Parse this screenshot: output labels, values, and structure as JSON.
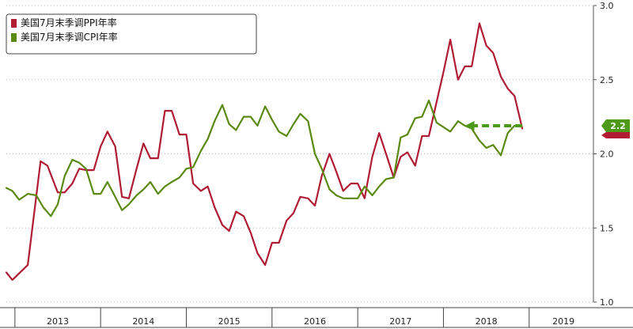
{
  "chart_data": {
    "type": "line",
    "title": "",
    "xlabel": "",
    "ylabel": "",
    "ylim": [
      1.0,
      3.0
    ],
    "yticks": [
      "1.0",
      "1.5",
      "2.0",
      "2.5",
      "3.0"
    ],
    "xrange": [
      2012.9,
      2019.75
    ],
    "years": [
      "2013",
      "2014",
      "2015",
      "2016",
      "2017",
      "2018",
      "2019"
    ],
    "grid": "horizontal-dotted",
    "legend_position": "top-left",
    "series": [
      {
        "name": "美国7月末季调PPI年率",
        "color": "#b01c34",
        "points": [
          [
            2012.9,
            1.2
          ],
          [
            2012.97,
            1.15
          ],
          [
            2013.15,
            1.25
          ],
          [
            2013.3,
            1.95
          ],
          [
            2013.38,
            1.92
          ],
          [
            2013.5,
            1.74
          ],
          [
            2013.58,
            1.74
          ],
          [
            2013.67,
            1.8
          ],
          [
            2013.75,
            1.9
          ],
          [
            2013.83,
            1.89
          ],
          [
            2013.92,
            1.89
          ],
          [
            2014.0,
            2.05
          ],
          [
            2014.08,
            2.15
          ],
          [
            2014.17,
            2.05
          ],
          [
            2014.25,
            1.71
          ],
          [
            2014.33,
            1.7
          ],
          [
            2014.42,
            1.9
          ],
          [
            2014.5,
            2.07
          ],
          [
            2014.58,
            1.97
          ],
          [
            2014.67,
            1.97
          ],
          [
            2014.75,
            2.29
          ],
          [
            2014.83,
            2.29
          ],
          [
            2014.92,
            2.13
          ],
          [
            2015.0,
            2.13
          ],
          [
            2015.08,
            1.8
          ],
          [
            2015.17,
            1.75
          ],
          [
            2015.25,
            1.78
          ],
          [
            2015.33,
            1.64
          ],
          [
            2015.42,
            1.52
          ],
          [
            2015.5,
            1.48
          ],
          [
            2015.58,
            1.61
          ],
          [
            2015.67,
            1.58
          ],
          [
            2015.75,
            1.47
          ],
          [
            2015.83,
            1.33
          ],
          [
            2015.92,
            1.25
          ],
          [
            2016.0,
            1.4
          ],
          [
            2016.08,
            1.4
          ],
          [
            2016.17,
            1.55
          ],
          [
            2016.25,
            1.6
          ],
          [
            2016.33,
            1.71
          ],
          [
            2016.42,
            1.7
          ],
          [
            2016.5,
            1.65
          ],
          [
            2016.58,
            1.85
          ],
          [
            2016.67,
            2.0
          ],
          [
            2016.75,
            1.88
          ],
          [
            2016.83,
            1.75
          ],
          [
            2016.92,
            1.8
          ],
          [
            2017.0,
            1.8
          ],
          [
            2017.08,
            1.7
          ],
          [
            2017.17,
            1.98
          ],
          [
            2017.25,
            2.14
          ],
          [
            2017.33,
            2.0
          ],
          [
            2017.42,
            1.84
          ],
          [
            2017.5,
            1.98
          ],
          [
            2017.58,
            2.01
          ],
          [
            2017.67,
            1.92
          ],
          [
            2017.75,
            2.12
          ],
          [
            2017.83,
            2.12
          ],
          [
            2017.92,
            2.35
          ],
          [
            2018.0,
            2.55
          ],
          [
            2018.08,
            2.77
          ],
          [
            2018.17,
            2.5
          ],
          [
            2018.25,
            2.59
          ],
          [
            2018.33,
            2.59
          ],
          [
            2018.42,
            2.88
          ],
          [
            2018.5,
            2.73
          ],
          [
            2018.58,
            2.68
          ],
          [
            2018.67,
            2.52
          ],
          [
            2018.75,
            2.44
          ],
          [
            2018.83,
            2.39
          ],
          [
            2018.92,
            2.17
          ]
        ]
      },
      {
        "name": "美国7月末季调CPI年率",
        "color": "#5a8a12",
        "points": [
          [
            2012.9,
            1.77
          ],
          [
            2012.97,
            1.75
          ],
          [
            2013.05,
            1.69
          ],
          [
            2013.15,
            1.73
          ],
          [
            2013.25,
            1.72
          ],
          [
            2013.33,
            1.64
          ],
          [
            2013.42,
            1.58
          ],
          [
            2013.5,
            1.66
          ],
          [
            2013.58,
            1.85
          ],
          [
            2013.67,
            1.96
          ],
          [
            2013.75,
            1.94
          ],
          [
            2013.83,
            1.9
          ],
          [
            2013.92,
            1.73
          ],
          [
            2014.0,
            1.73
          ],
          [
            2014.08,
            1.81
          ],
          [
            2014.17,
            1.71
          ],
          [
            2014.25,
            1.62
          ],
          [
            2014.33,
            1.66
          ],
          [
            2014.42,
            1.72
          ],
          [
            2014.5,
            1.76
          ],
          [
            2014.58,
            1.81
          ],
          [
            2014.67,
            1.73
          ],
          [
            2014.75,
            1.78
          ],
          [
            2014.83,
            1.81
          ],
          [
            2014.92,
            1.84
          ],
          [
            2015.0,
            1.9
          ],
          [
            2015.08,
            1.91
          ],
          [
            2015.17,
            2.02
          ],
          [
            2015.25,
            2.1
          ],
          [
            2015.33,
            2.22
          ],
          [
            2015.42,
            2.33
          ],
          [
            2015.5,
            2.2
          ],
          [
            2015.58,
            2.16
          ],
          [
            2015.67,
            2.25
          ],
          [
            2015.75,
            2.25
          ],
          [
            2015.83,
            2.19
          ],
          [
            2015.92,
            2.32
          ],
          [
            2016.0,
            2.23
          ],
          [
            2016.08,
            2.15
          ],
          [
            2016.17,
            2.12
          ],
          [
            2016.25,
            2.2
          ],
          [
            2016.33,
            2.27
          ],
          [
            2016.42,
            2.22
          ],
          [
            2016.5,
            2.0
          ],
          [
            2016.58,
            1.9
          ],
          [
            2016.67,
            1.76
          ],
          [
            2016.75,
            1.72
          ],
          [
            2016.83,
            1.7
          ],
          [
            2016.92,
            1.7
          ],
          [
            2017.0,
            1.7
          ],
          [
            2017.08,
            1.78
          ],
          [
            2017.17,
            1.72
          ],
          [
            2017.25,
            1.78
          ],
          [
            2017.33,
            1.83
          ],
          [
            2017.42,
            1.84
          ],
          [
            2017.5,
            2.11
          ],
          [
            2017.58,
            2.13
          ],
          [
            2017.67,
            2.24
          ],
          [
            2017.75,
            2.25
          ],
          [
            2017.83,
            2.36
          ],
          [
            2017.92,
            2.21
          ],
          [
            2018.0,
            2.18
          ],
          [
            2018.08,
            2.15
          ],
          [
            2018.17,
            2.22
          ],
          [
            2018.25,
            2.19
          ],
          [
            2018.33,
            2.17
          ],
          [
            2018.42,
            2.09
          ],
          [
            2018.5,
            2.04
          ],
          [
            2018.58,
            2.06
          ],
          [
            2018.67,
            1.99
          ],
          [
            2018.75,
            2.14
          ],
          [
            2018.83,
            2.19
          ]
        ]
      }
    ],
    "annotation": {
      "label": "2.2",
      "value": 2.2,
      "color": "#4d9a1a",
      "arrow_from": 2018.92,
      "arrow_to": 2018.25
    }
  }
}
